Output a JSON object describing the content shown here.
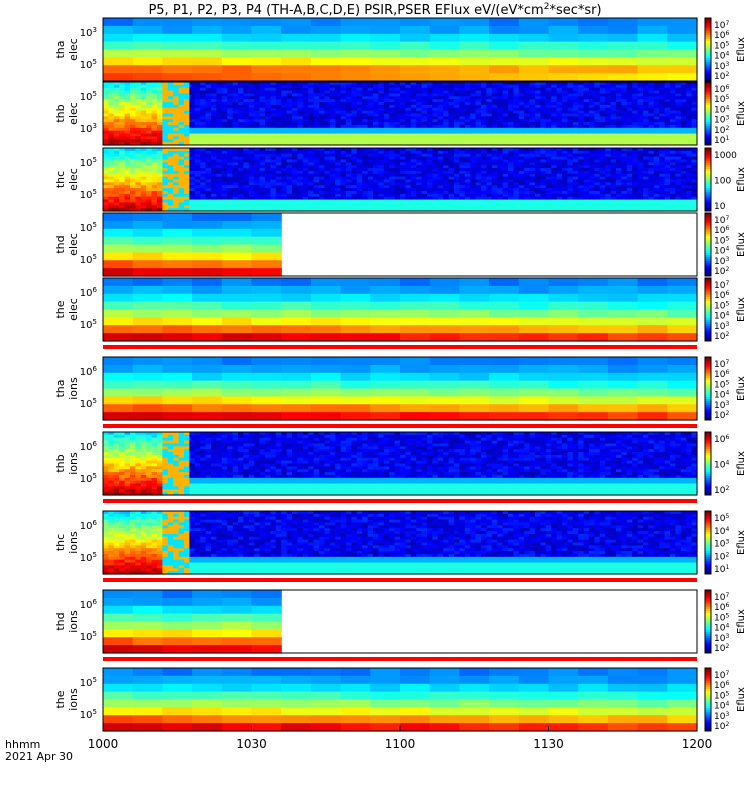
{
  "title": "P5, P1, P2, P3, P4 (TH-A,B,C,D,E) PSIR,PSER EFlux eV/(eV*cm",
  "title_sup": "2",
  "title_tail": "*sec*sr)",
  "time_label_line1": "hhmm",
  "time_label_line2": "2021 Apr 30",
  "chart_data": {
    "type": "heatmap",
    "x_ticks": [
      "1000",
      "1030",
      "1100",
      "1130",
      "1200"
    ],
    "x_range": [
      "10:00",
      "12:00"
    ],
    "colorbar_label": "Eflux",
    "panels": [
      {
        "probe": "tha",
        "species": "elec",
        "y_ticks": [
          "10^3",
          "10^5"
        ],
        "cbar_ticks": [
          "10^7",
          "10^6",
          "10^5",
          "10^4",
          "10^3",
          "10^2"
        ],
        "data_end": "12:00",
        "pattern": "smooth",
        "status_bar": false
      },
      {
        "probe": "thb",
        "species": "elec",
        "y_ticks": [
          "10^5",
          "10^3"
        ],
        "cbar_ticks": [
          "10^6",
          "10^5",
          "10^4",
          "10^3",
          "10^2",
          "10^1"
        ],
        "data_end": "12:00",
        "pattern": "noisy",
        "status_bar": false
      },
      {
        "probe": "thc",
        "species": "elec",
        "y_ticks": [
          "10^5",
          "10^5"
        ],
        "cbar_ticks": [
          "1000",
          "100",
          "10"
        ],
        "data_end": "12:00",
        "pattern": "noisy",
        "status_bar": false
      },
      {
        "probe": "thd",
        "species": "elec",
        "y_ticks": [
          "10^5",
          "10^5"
        ],
        "cbar_ticks": [
          "10^7",
          "10^6",
          "10^5",
          "10^4",
          "10^3",
          "10^2"
        ],
        "data_end": "10:35",
        "pattern": "smooth",
        "status_bar": false
      },
      {
        "probe": "the",
        "species": "elec",
        "y_ticks": [
          "10^6",
          "10^5"
        ],
        "cbar_ticks": [
          "10^7",
          "10^6",
          "10^5",
          "10^4",
          "10^3",
          "10^2"
        ],
        "data_end": "12:00",
        "pattern": "smooth",
        "status_bar": true
      },
      {
        "probe": "tha",
        "species": "ions",
        "y_ticks": [
          "10^6",
          "10^5"
        ],
        "cbar_ticks": [
          "10^7",
          "10^6",
          "10^5",
          "10^4",
          "10^3",
          "10^2"
        ],
        "data_end": "12:00",
        "pattern": "smooth",
        "status_bar": true
      },
      {
        "probe": "thb",
        "species": "ions",
        "y_ticks": [
          "10^6",
          "10^5"
        ],
        "cbar_ticks": [
          "10^6",
          "10^4",
          "10^2"
        ],
        "data_end": "12:00",
        "pattern": "noisy",
        "status_bar": true
      },
      {
        "probe": "thc",
        "species": "ions",
        "y_ticks": [
          "10^6",
          "10^5"
        ],
        "cbar_ticks": [
          "10^5",
          "10^4",
          "10^3",
          "10^2",
          "10^1"
        ],
        "data_end": "12:00",
        "pattern": "noisy",
        "status_bar": true
      },
      {
        "probe": "thd",
        "species": "ions",
        "y_ticks": [
          "10^6",
          "10^5"
        ],
        "cbar_ticks": [
          "10^7",
          "10^6",
          "10^5",
          "10^4",
          "10^3",
          "10^2"
        ],
        "data_end": "10:35",
        "pattern": "smooth",
        "status_bar": true
      },
      {
        "probe": "the",
        "species": "ions",
        "y_ticks": [
          "10^5",
          "10^5"
        ],
        "cbar_ticks": [
          "10^7",
          "10^6",
          "10^5",
          "10^4",
          "10^3",
          "10^2"
        ],
        "data_end": "12:00",
        "pattern": "smooth",
        "status_bar": false
      }
    ]
  }
}
